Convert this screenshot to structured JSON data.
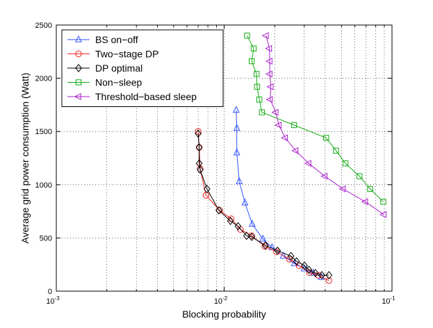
{
  "chart_data": {
    "type": "line",
    "xscale": "log",
    "xlim": [
      0.001,
      0.1
    ],
    "ylim": [
      0,
      2500
    ],
    "xlabel": "Blocking probability",
    "ylabel": "Average grid power consumption (Watt)",
    "grid": true,
    "legend_position": "top-left",
    "x_ticks": [
      {
        "value": 0.001,
        "base": "10",
        "exp": "-3"
      },
      {
        "value": 0.01,
        "base": "10",
        "exp": "-2"
      },
      {
        "value": 0.1,
        "base": "10",
        "exp": "-1"
      }
    ],
    "y_ticks": [
      0,
      500,
      1000,
      1500,
      2000,
      2500
    ],
    "series": [
      {
        "name": "BS on−off",
        "color": "#3355ff",
        "marker": "triangle-up",
        "points": [
          [
            0.0118,
            1700
          ],
          [
            0.0119,
            1530
          ],
          [
            0.0119,
            1300
          ],
          [
            0.0123,
            1030
          ],
          [
            0.0133,
            830
          ],
          [
            0.0147,
            630
          ],
          [
            0.017,
            490
          ],
          [
            0.0193,
            410
          ],
          [
            0.0225,
            330
          ],
          [
            0.0262,
            260
          ],
          [
            0.03,
            210
          ],
          [
            0.034,
            170
          ],
          [
            0.038,
            130
          ]
        ]
      },
      {
        "name": "Two−stage DP",
        "color": "#ee2222",
        "marker": "circle",
        "points": [
          [
            0.007,
            1500
          ],
          [
            0.0071,
            1350
          ],
          [
            0.0072,
            1150
          ],
          [
            0.0078,
            900
          ],
          [
            0.0094,
            760
          ],
          [
            0.011,
            680
          ],
          [
            0.0125,
            580
          ],
          [
            0.0146,
            520
          ],
          [
            0.0175,
            420
          ],
          [
            0.0205,
            370
          ],
          [
            0.0245,
            300
          ],
          [
            0.028,
            240
          ],
          [
            0.0322,
            175
          ],
          [
            0.0363,
            150
          ],
          [
            0.0421,
            100
          ]
        ]
      },
      {
        "name": "DP optimal",
        "color": "#000000",
        "marker": "diamond",
        "points": [
          [
            0.007,
            1480
          ],
          [
            0.0071,
            1350
          ],
          [
            0.0071,
            1200
          ],
          [
            0.0072,
            1140
          ],
          [
            0.0079,
            960
          ],
          [
            0.0093,
            760
          ],
          [
            0.0109,
            660
          ],
          [
            0.0121,
            610
          ],
          [
            0.0136,
            520
          ],
          [
            0.0146,
            510
          ],
          [
            0.0176,
            430
          ],
          [
            0.0208,
            380
          ],
          [
            0.025,
            330
          ],
          [
            0.027,
            280
          ],
          [
            0.0301,
            240
          ],
          [
            0.032,
            200
          ],
          [
            0.035,
            170
          ],
          [
            0.0382,
            150
          ],
          [
            0.0421,
            150
          ]
        ]
      },
      {
        "name": "Non−sleep",
        "color": "#11aa11",
        "marker": "square",
        "points": [
          [
            0.0137,
            2400
          ],
          [
            0.015,
            2280
          ],
          [
            0.0146,
            2160
          ],
          [
            0.0156,
            2040
          ],
          [
            0.0157,
            1920
          ],
          [
            0.0162,
            1800
          ],
          [
            0.0168,
            1680
          ],
          [
            0.0261,
            1560
          ],
          [
            0.0405,
            1440
          ],
          [
            0.0464,
            1320
          ],
          [
            0.0528,
            1200
          ],
          [
            0.064,
            1080
          ],
          [
            0.0741,
            960
          ],
          [
            0.0887,
            840
          ]
        ]
      },
      {
        "name": "Threshold−based sleep",
        "color": "#aa22cc",
        "marker": "triangle-left",
        "points": [
          [
            0.0178,
            2400
          ],
          [
            0.0186,
            2280
          ],
          [
            0.0187,
            2160
          ],
          [
            0.0187,
            2040
          ],
          [
            0.019,
            1920
          ],
          [
            0.0188,
            1800
          ],
          [
            0.0203,
            1680
          ],
          [
            0.0212,
            1560
          ],
          [
            0.0231,
            1440
          ],
          [
            0.0267,
            1320
          ],
          [
            0.0319,
            1200
          ],
          [
            0.0398,
            1080
          ],
          [
            0.0511,
            960
          ],
          [
            0.0694,
            840
          ],
          [
            0.0894,
            720
          ]
        ]
      }
    ]
  }
}
